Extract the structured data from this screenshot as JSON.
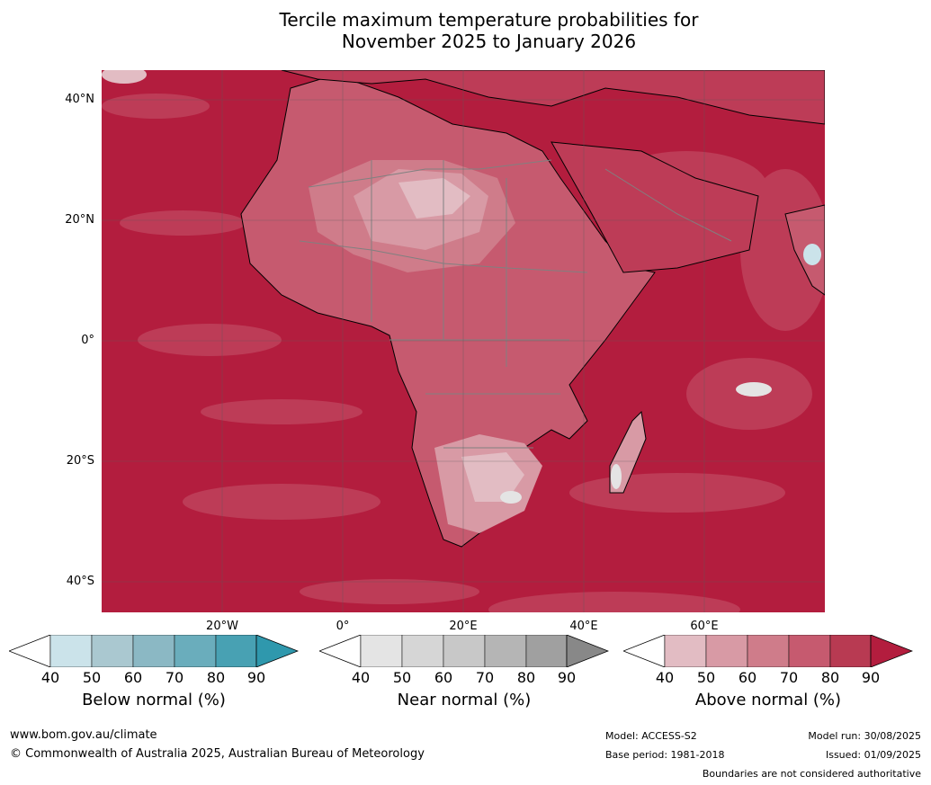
{
  "title": {
    "line1": "Tercile maximum temperature probabilities for",
    "line2": "November 2025 to January 2026"
  },
  "map": {
    "lat_labels": [
      "40°N",
      "20°N",
      "0°",
      "20°S",
      "40°S"
    ],
    "lon_labels": [
      "20°W",
      "0°",
      "20°E",
      "40°E",
      "60°E"
    ],
    "colors": {
      "above_90": "#b31d3e",
      "above_80": "#bd3c57",
      "above_70": "#c65a6f",
      "above_60": "#cf7c8a",
      "above_50": "#d89aa5",
      "above_40": "#e2bcc3",
      "near_normal": "#e4e4e4",
      "below_40": "#cbe3ea",
      "ocean_bg": "#b31d3e",
      "coastline": "#000000",
      "borders": "#808080",
      "grid": "#5a5a5a"
    }
  },
  "colorbars": [
    {
      "label": "Below normal (%)",
      "ticks": [
        "40",
        "50",
        "60",
        "70",
        "80",
        "90"
      ],
      "colors": [
        "#ffffff",
        "#cbe3ea",
        "#aac8d0",
        "#8bb8c4",
        "#6aadbc",
        "#48a1b3",
        "#2f98ad"
      ]
    },
    {
      "label": "Near normal (%)",
      "ticks": [
        "40",
        "50",
        "60",
        "70",
        "80",
        "90"
      ],
      "colors": [
        "#ffffff",
        "#e4e4e4",
        "#d6d6d6",
        "#c8c8c8",
        "#b5b5b5",
        "#a0a0a0",
        "#888888"
      ]
    },
    {
      "label": "Above normal (%)",
      "ticks": [
        "40",
        "50",
        "60",
        "70",
        "80",
        "90"
      ],
      "colors": [
        "#ffffff",
        "#e2bcc3",
        "#d89aa5",
        "#cf7c8a",
        "#c65a6f",
        "#b83a52",
        "#b31d3e"
      ]
    }
  ],
  "footer": {
    "website": "www.bom.gov.au/climate",
    "copyright": "© Commonwealth of Australia 2025, Australian Bureau of Meteorology",
    "model": "Model: ACCESS-S2",
    "base_period": "Base period: 1981-2018",
    "model_run": "Model run: 30/08/2025",
    "issued": "Issued: 01/09/2025",
    "disclaimer": "Boundaries are not considered authoritative"
  }
}
